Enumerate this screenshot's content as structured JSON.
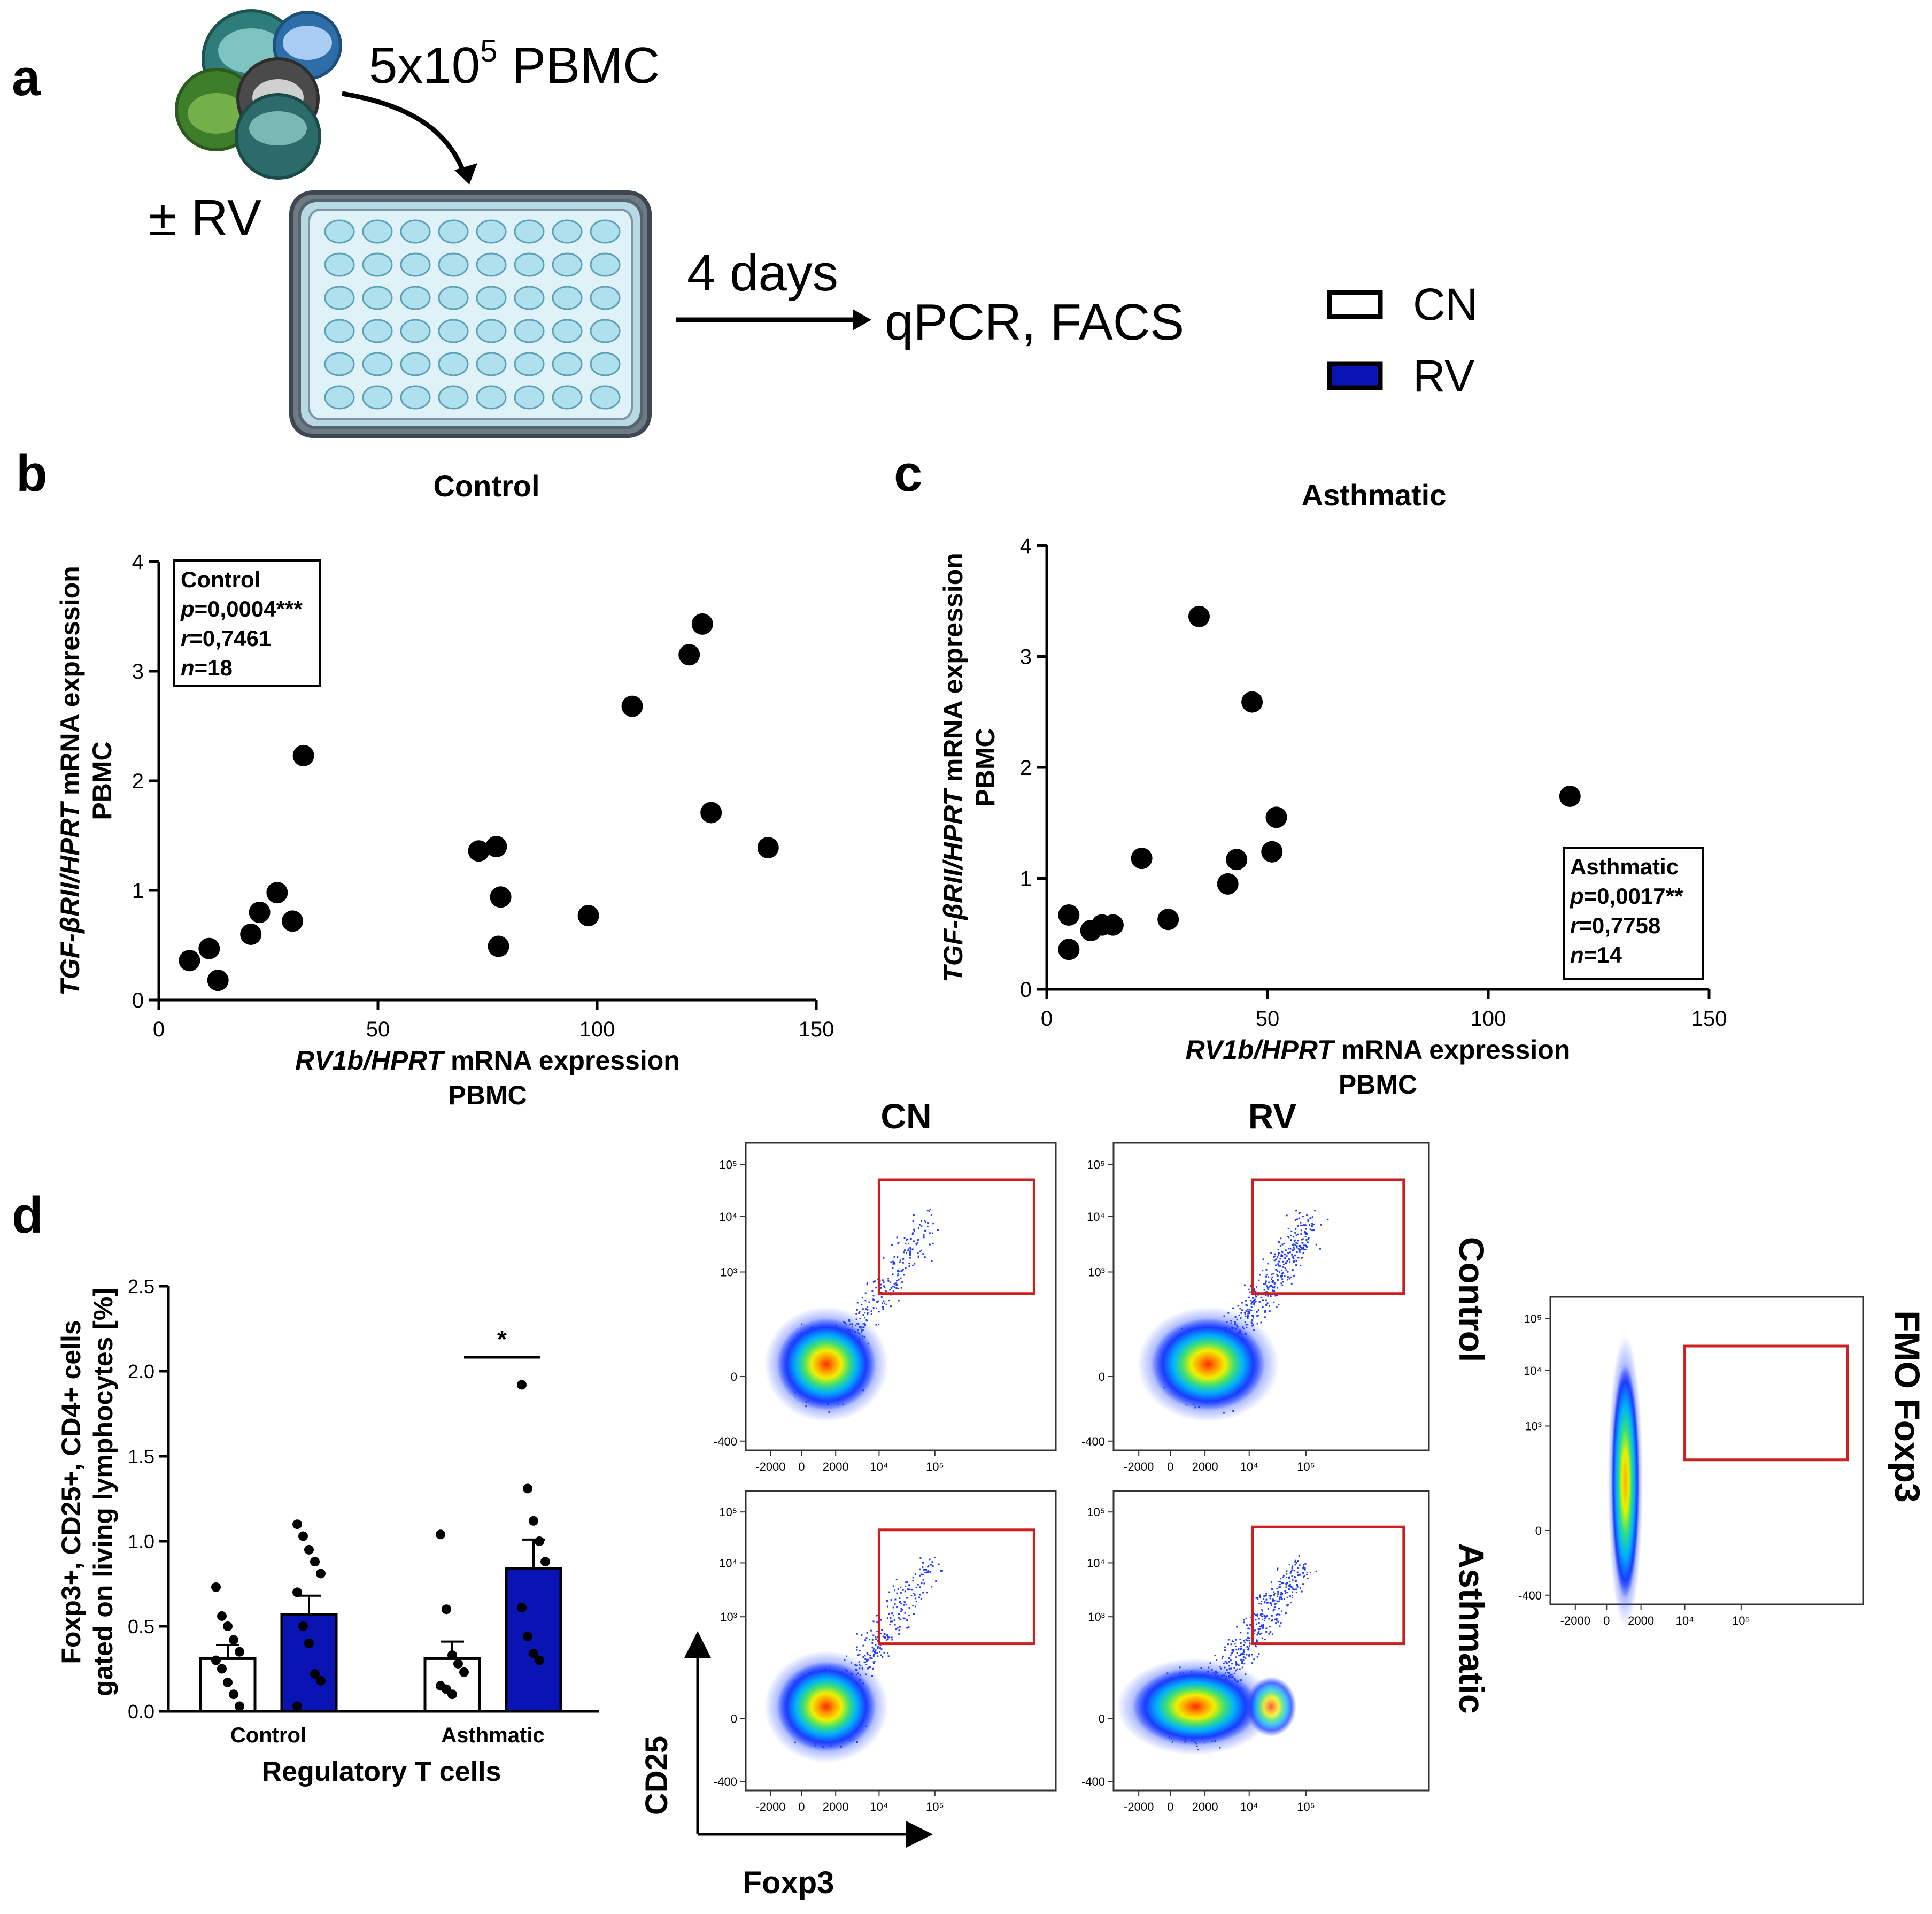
{
  "panel_a": {
    "letter": "a",
    "cells_label": "5x10",
    "cells_sup": "5",
    "cells_suffix": " PBMC",
    "treatment": "± RV",
    "duration": "4 days",
    "readout": "qPCR, FACS"
  },
  "legend": {
    "items": [
      {
        "label": "CN",
        "color": "#ffffff"
      },
      {
        "label": "RV",
        "color": "#0a14b4"
      }
    ]
  },
  "panel_b": {
    "letter": "b",
    "title": "Control"
  },
  "panel_c": {
    "letter": "c",
    "title": "Asthmatic"
  },
  "panel_d": {
    "letter": "d",
    "col_cn": "CN",
    "col_rv": "RV",
    "row_control": "Control",
    "row_asthmatic": "Asthmatic",
    "fmo": "FMO Foxp3",
    "axis_y": "CD25",
    "axis_x": "Foxp3",
    "flow_ticks_x": [
      "-2000",
      "0",
      "2000",
      "10⁴",
      "10⁵"
    ],
    "flow_ticks_y": [
      "10⁵",
      "10⁴",
      "10³",
      "0",
      "-400"
    ]
  },
  "chart_data": [
    {
      "type": "scatter",
      "id": "b",
      "title": "Control",
      "xlabel_italic": "RV1b/HPRT",
      "xlabel_rest": " mRNA expression",
      "xlabel_line2": "PBMC",
      "ylabel_italic": "TGF-βRII/HPRT",
      "ylabel_rest": " mRNA expression",
      "ylabel_line2": "PBMC",
      "xlim": [
        0,
        150
      ],
      "ylim": [
        0,
        4
      ],
      "xticks": [
        0,
        50,
        100,
        150
      ],
      "yticks": [
        0,
        1,
        2,
        3,
        4
      ],
      "stats": {
        "group": "Control",
        "p": "0,0004***",
        "r": "0,7461",
        "n": "18"
      },
      "legend_position": "top-left",
      "points": [
        [
          7,
          0.36
        ],
        [
          11.5,
          0.47
        ],
        [
          13.5,
          0.18
        ],
        [
          21,
          0.6
        ],
        [
          23,
          0.8
        ],
        [
          27,
          0.98
        ],
        [
          30.5,
          0.72
        ],
        [
          33,
          2.23
        ],
        [
          73,
          1.36
        ],
        [
          77,
          1.4
        ],
        [
          78,
          0.94
        ],
        [
          77.5,
          0.49
        ],
        [
          98,
          0.77
        ],
        [
          108,
          2.68
        ],
        [
          121,
          3.15
        ],
        [
          124,
          3.43
        ],
        [
          126,
          1.71
        ],
        [
          139,
          1.39
        ]
      ]
    },
    {
      "type": "scatter",
      "id": "c",
      "title": "Asthmatic",
      "xlabel_italic": "RV1b/HPRT",
      "xlabel_rest": " mRNA expression",
      "xlabel_line2": "PBMC",
      "ylabel_italic": "TGF-βRII/HPRT",
      "ylabel_rest": " mRNA expression",
      "ylabel_line2": "PBMC",
      "xlim": [
        0,
        150
      ],
      "ylim": [
        0,
        4
      ],
      "xticks": [
        0,
        50,
        100,
        150
      ],
      "yticks": [
        0,
        1,
        2,
        3,
        4
      ],
      "stats": {
        "group": "Asthmatic",
        "p": "0,0017**",
        "r": "0,7758",
        "n": "14"
      },
      "legend_position": "bottom-right",
      "points": [
        [
          5,
          0.67
        ],
        [
          5,
          0.36
        ],
        [
          10,
          0.53
        ],
        [
          12.5,
          0.58
        ],
        [
          15,
          0.58
        ],
        [
          21.5,
          1.18
        ],
        [
          27.5,
          0.63
        ],
        [
          34.5,
          3.36
        ],
        [
          41,
          0.95
        ],
        [
          43,
          1.17
        ],
        [
          46.5,
          2.59
        ],
        [
          51,
          1.24
        ],
        [
          52,
          1.55
        ],
        [
          118.5,
          1.74
        ]
      ]
    },
    {
      "type": "bar",
      "id": "d",
      "categories": [
        "Control",
        "Asthmatic"
      ],
      "xlabel": "Regulatory T cells",
      "ylabel_line1": "Foxp3+, CD25+, CD4+ cells",
      "ylabel_line2": "gated on living lymphocytes [%]",
      "ylim": [
        0,
        2.5
      ],
      "yticks": [
        "0.0",
        "0.5",
        "1.0",
        "1.5",
        "2.0",
        "2.5"
      ],
      "series": [
        {
          "name": "CN",
          "values": [
            0.31,
            0.31
          ],
          "sem": [
            0.08,
            0.1
          ]
        },
        {
          "name": "RV",
          "values": [
            0.57,
            0.84
          ],
          "sem": [
            0.11,
            0.17
          ]
        }
      ],
      "significance": {
        "category": "Asthmatic",
        "label": "*"
      },
      "points": {
        "Control_CN": [
          0.73,
          0.56,
          0.5,
          0.42,
          0.35,
          0.3,
          0.25,
          0.17,
          0.1,
          0.03
        ],
        "Control_RV": [
          1.1,
          1.03,
          0.95,
          0.88,
          0.81,
          0.7,
          0.5,
          0.4,
          0.22,
          0.18,
          0.03
        ],
        "Asthmatic_CN": [
          1.04,
          0.6,
          0.33,
          0.28,
          0.23,
          0.15,
          0.13,
          0.1
        ],
        "Asthmatic_RV": [
          1.92,
          1.31,
          1.12,
          1.0,
          0.88,
          0.61,
          0.44,
          0.34,
          0.3
        ]
      }
    }
  ]
}
